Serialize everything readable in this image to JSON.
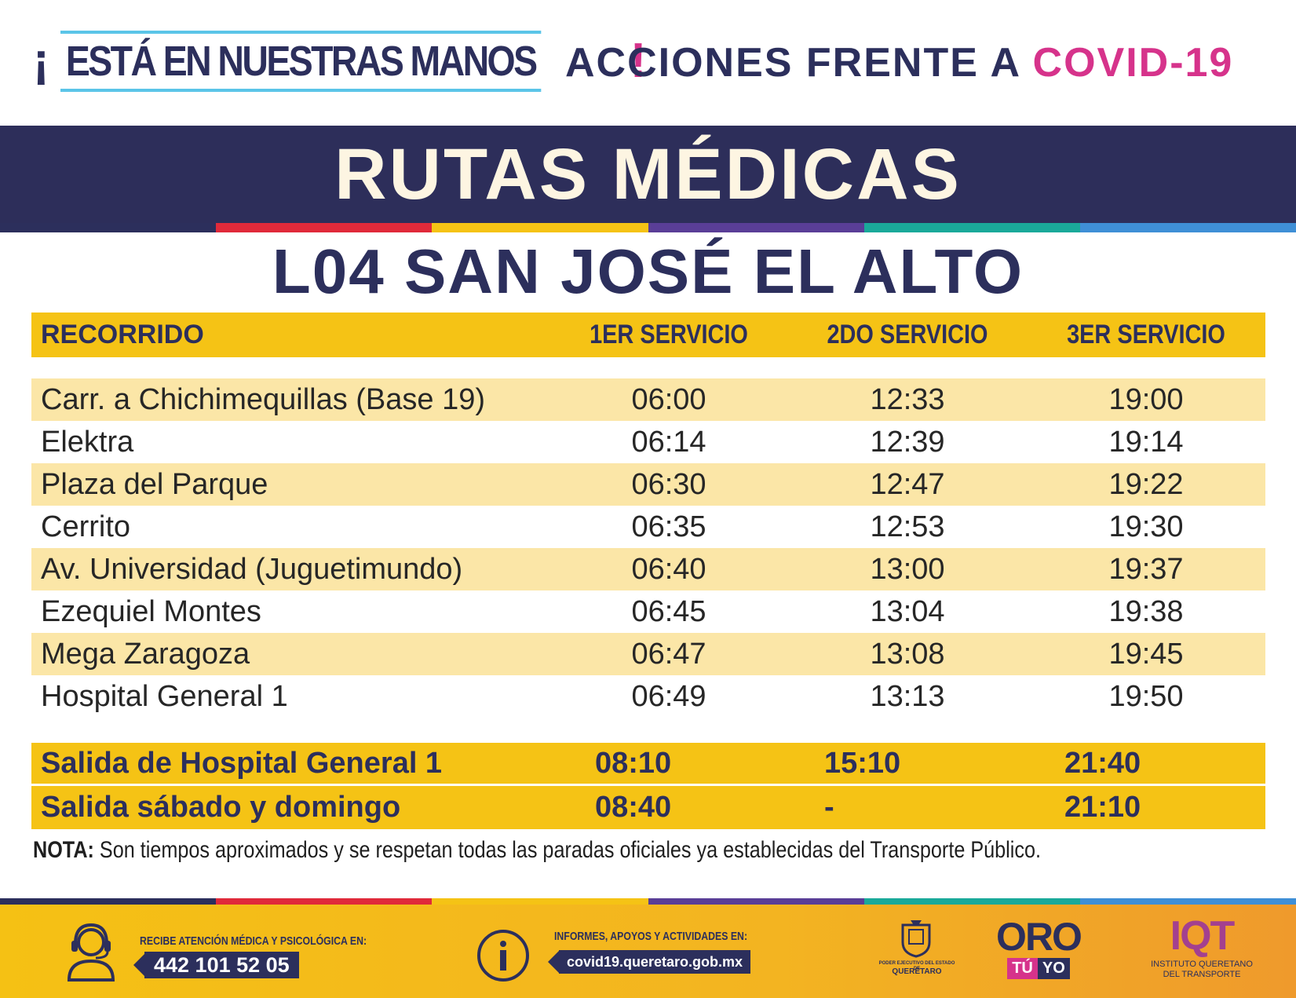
{
  "header": {
    "slogan_open": "¡",
    "slogan": "ESTÁ EN NUESTRAS MANOS",
    "slogan_close": "!",
    "acciones": "ACCIONES FRENTE A",
    "covid": "COVID-19"
  },
  "banner": {
    "title": "RUTAS MÉDICAS"
  },
  "route": {
    "name": "L04 SAN JOSÉ EL ALTO"
  },
  "table": {
    "headers": [
      "RECORRIDO",
      "1ER SERVICIO",
      "2DO SERVICIO",
      "3ER SERVICIO"
    ],
    "rows": [
      [
        "Carr. a Chichimequillas (Base 19)",
        "06:00",
        "12:33",
        "19:00"
      ],
      [
        "Elektra",
        "06:14",
        "12:39",
        "19:14"
      ],
      [
        "Plaza del Parque",
        "06:30",
        "12:47",
        "19:22"
      ],
      [
        "Cerrito",
        "06:35",
        "12:53",
        "19:30"
      ],
      [
        "Av. Universidad (Juguetimundo)",
        "06:40",
        "13:00",
        "19:37"
      ],
      [
        "Ezequiel Montes",
        "06:45",
        "13:04",
        "19:38"
      ],
      [
        "Mega Zaragoza",
        "06:47",
        "13:08",
        "19:45"
      ],
      [
        "Hospital General 1",
        "06:49",
        "13:13",
        "19:50"
      ]
    ],
    "departures": [
      [
        "Salida de Hospital General 1",
        "08:10",
        "15:10",
        "21:40"
      ],
      [
        "Salida sábado y domingo",
        "08:40",
        "-",
        "21:10"
      ]
    ]
  },
  "note": {
    "label": "NOTA:",
    "text": " Son tiempos aproximados y se respetan todas las paradas oficiales ya establecidas del Transporte Público."
  },
  "footer": {
    "phone_caption": "RECIBE ATENCIÓN MÉDICA Y PSICOLÓGICA EN:",
    "phone": "442 101 52 05",
    "info_caption": "INFORMES, APOYOS Y ACTIVIDADES EN:",
    "website": "covid19.queretaro.gob.mx",
    "logos": {
      "gov_small": "PODER EJECUTIVO DEL ESTADO DE",
      "gov_state": "QUERÉTARO",
      "oro": "ORO",
      "tu": "TÚ",
      "yo": "YO",
      "iqt": "IQT",
      "iqt_name_1": "INSTITUTO QUERETANO",
      "iqt_name_2": "DEL TRANSPORTE"
    }
  },
  "colors": {
    "navy": "#2c2f5c",
    "pink": "#d6338b",
    "yellow": "#f5c315",
    "light_yellow": "#fbe6a7",
    "stripe": [
      "#2c2f5c",
      "#e02a3a",
      "#f5c315",
      "#5a3e97",
      "#1aa99a",
      "#3f8fd6"
    ]
  },
  "icons": [
    "headset-agent-icon",
    "info-icon",
    "queretaro-seal-icon"
  ]
}
